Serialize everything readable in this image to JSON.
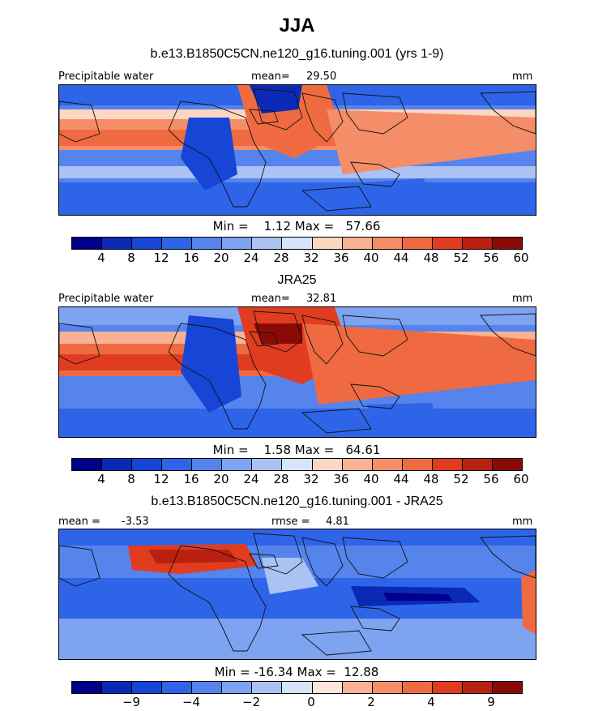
{
  "title": "JJA",
  "palette": {
    "abs": [
      "#00008c",
      "#0a2ab5",
      "#1746d6",
      "#2e64e8",
      "#5584ec",
      "#7ea3f0",
      "#aac3f4",
      "#d6e4f8",
      "#fbd6c0",
      "#f8b192",
      "#f48d68",
      "#ef6a41",
      "#e03c20",
      "#b9200f",
      "#8a0a06"
    ],
    "diff": [
      "#00008c",
      "#0a2ab5",
      "#1746d6",
      "#2e64e8",
      "#5584ec",
      "#7ea3f0",
      "#aac3f4",
      "#d6e4f8",
      "#fbe6d9",
      "#f8b192",
      "#f48d68",
      "#ef6a41",
      "#e03c20",
      "#b9200f",
      "#8a0a06"
    ]
  },
  "chart_data": [
    {
      "type": "heatmap",
      "title": "b.e13.B1850C5CN.ne120_g16.tuning.001 (yrs 1-9)",
      "variable": "Precipitable water",
      "units": "mm",
      "mean_label": "mean=",
      "mean": "29.50",
      "min_label": "Min =",
      "min": "1.12",
      "max_label": "Max =",
      "max": "57.66",
      "colorbar_ticks": [
        "4",
        "8",
        "12",
        "16",
        "20",
        "24",
        "28",
        "32",
        "36",
        "40",
        "44",
        "48",
        "52",
        "56",
        "60"
      ]
    },
    {
      "type": "heatmap",
      "title": "JRA25",
      "variable": "Precipitable water",
      "units": "mm",
      "mean_label": "mean=",
      "mean": "32.81",
      "min_label": "Min =",
      "min": "1.58",
      "max_label": "Max =",
      "max": "64.61",
      "colorbar_ticks": [
        "4",
        "8",
        "12",
        "16",
        "20",
        "24",
        "28",
        "32",
        "36",
        "40",
        "44",
        "48",
        "52",
        "56",
        "60"
      ]
    },
    {
      "type": "heatmap",
      "title": "b.e13.B1850C5CN.ne120_g16.tuning.001 - JRA25",
      "mean_text": "mean =",
      "mean": "-3.53",
      "rmse_label": "rmse =",
      "rmse": "4.81",
      "units": "mm",
      "min_label": "Min =",
      "min": "-16.34",
      "max_label": "Max =",
      "max": "12.88",
      "colorbar_ticks": [
        "-9",
        "-4",
        "-2",
        "0",
        "2",
        "4",
        "9"
      ],
      "colorbar_tick_boundaries": [
        2,
        4,
        6,
        8,
        10,
        12,
        14
      ]
    }
  ]
}
